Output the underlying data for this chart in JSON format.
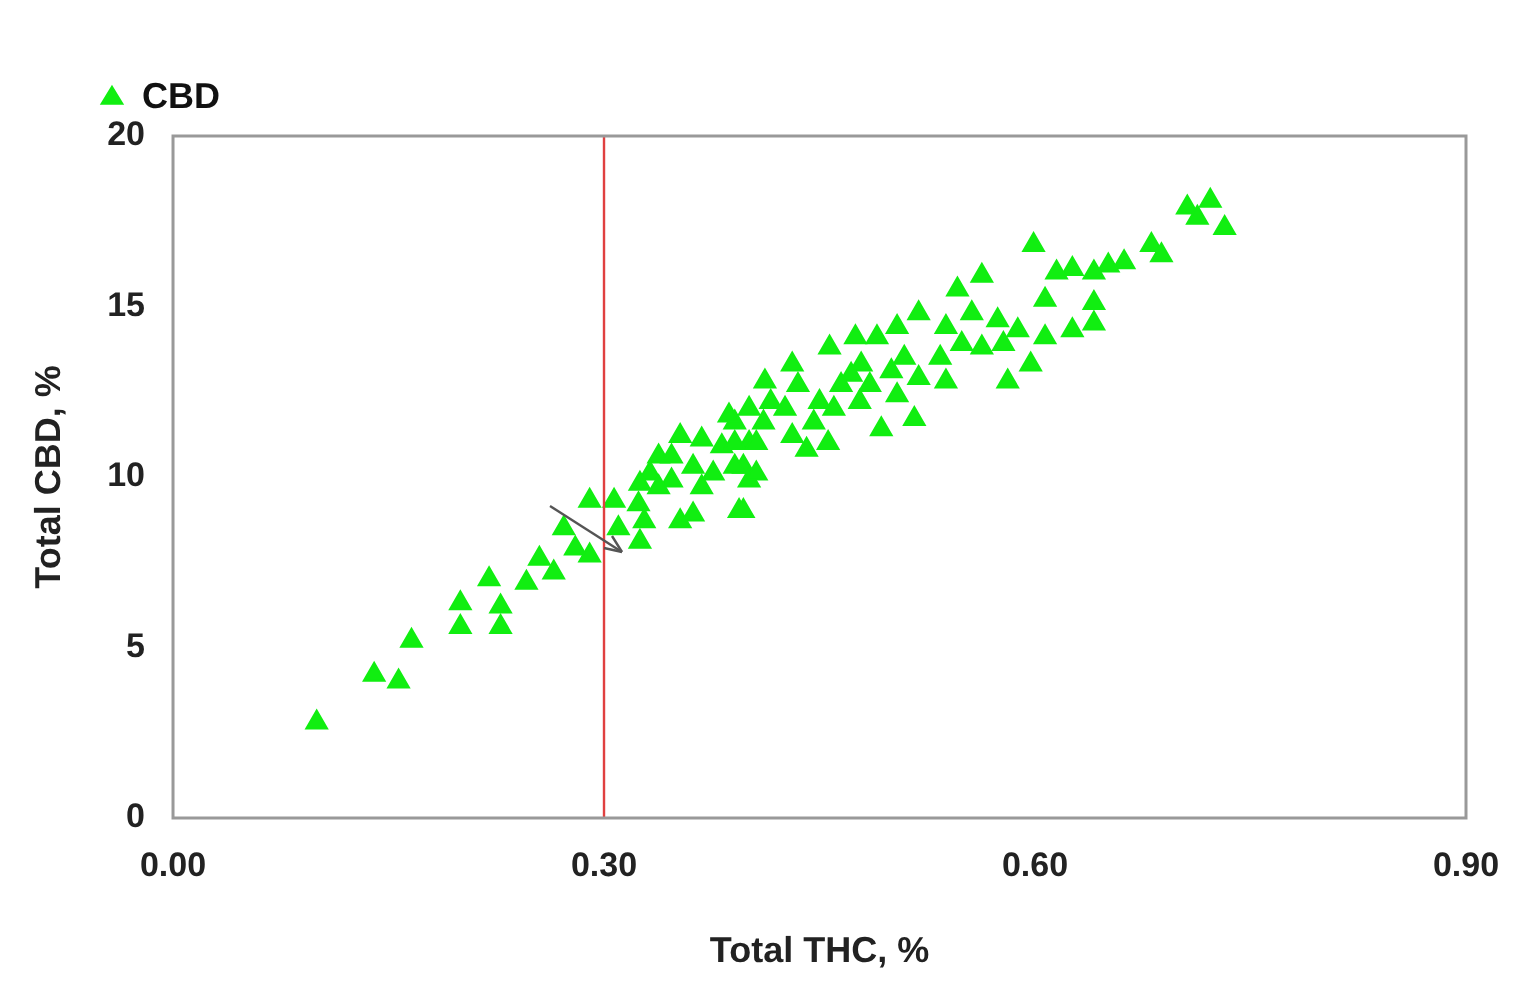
{
  "chart_data": {
    "type": "scatter",
    "xlabel": "Total THC, %",
    "ylabel": "Total CBD, %",
    "xlim": [
      0,
      0.9
    ],
    "ylim": [
      0,
      20
    ],
    "xticks": [
      {
        "value": 0,
        "label": "0.00"
      },
      {
        "value": 0.3,
        "label": "0.30"
      },
      {
        "value": 0.6,
        "label": "0.60"
      },
      {
        "value": 0.9,
        "label": "0.90"
      }
    ],
    "yticks": [
      0,
      5,
      10,
      15,
      20
    ],
    "grid": false,
    "legend": "top left",
    "marker": "triangle",
    "ref_lines": [
      {
        "axis": "x",
        "value": 0.3,
        "color": "#e04040",
        "line_style": "solid"
      }
    ],
    "series": [
      {
        "name": "CBD",
        "color": "#11ee11",
        "x": [
          0.1,
          0.14,
          0.157,
          0.166,
          0.2,
          0.2,
          0.22,
          0.228,
          0.228,
          0.246,
          0.255,
          0.265,
          0.272,
          0.28,
          0.29,
          0.29,
          0.307,
          0.31,
          0.325,
          0.706,
          0.722,
          0.732,
          0.713,
          0.599,
          0.681,
          0.688,
          0.662,
          0.651,
          0.641,
          0.626,
          0.615,
          0.641,
          0.641,
          0.626,
          0.607,
          0.607,
          0.597,
          0.581,
          0.563,
          0.546,
          0.556,
          0.574,
          0.588,
          0.538,
          0.549,
          0.563,
          0.578,
          0.534,
          0.538,
          0.519,
          0.504,
          0.49,
          0.475,
          0.457,
          0.431,
          0.509,
          0.519,
          0.516,
          0.5,
          0.504,
          0.493,
          0.479,
          0.485,
          0.472,
          0.478,
          0.465,
          0.46,
          0.45,
          0.446,
          0.435,
          0.426,
          0.416,
          0.411,
          0.431,
          0.441,
          0.456,
          0.401,
          0.397,
          0.391,
          0.401,
          0.394,
          0.412,
          0.387,
          0.401,
          0.353,
          0.368,
          0.338,
          0.332,
          0.325,
          0.324,
          0.328,
          0.347,
          0.347,
          0.353,
          0.362,
          0.368,
          0.376,
          0.391,
          0.397,
          0.406,
          0.382,
          0.362,
          0.391,
          0.406,
          0.338
        ],
        "values": [
          2.8,
          4.2,
          4.0,
          5.2,
          6.3,
          5.6,
          7.0,
          6.2,
          5.6,
          6.9,
          7.6,
          7.2,
          8.5,
          7.9,
          9.3,
          7.7,
          9.3,
          8.5,
          8.1,
          17.9,
          18.1,
          17.3,
          17.6,
          16.8,
          16.8,
          16.5,
          16.3,
          16.2,
          16.0,
          16.1,
          16.0,
          15.1,
          14.5,
          14.3,
          15.2,
          14.1,
          13.3,
          12.8,
          15.9,
          15.5,
          14.8,
          14.6,
          14.3,
          14.4,
          13.9,
          13.8,
          13.9,
          13.5,
          12.8,
          14.8,
          14.4,
          14.1,
          14.1,
          13.8,
          13.3,
          13.5,
          12.9,
          11.7,
          13.1,
          12.4,
          11.4,
          13.3,
          12.7,
          13.0,
          12.2,
          12.7,
          12.0,
          12.2,
          11.6,
          12.7,
          12.0,
          12.2,
          11.6,
          11.2,
          10.8,
          11.0,
          11.0,
          10.3,
          11.6,
          9.9,
          9.0,
          12.8,
          11.8,
          12.0,
          11.2,
          11.1,
          10.6,
          10.1,
          9.8,
          9.2,
          8.7,
          10.6,
          9.9,
          8.7,
          8.9,
          9.7,
          10.1,
          10.3,
          9.0,
          10.1,
          10.9,
          10.3,
          11.0,
          11.0,
          9.7
        ]
      }
    ]
  }
}
